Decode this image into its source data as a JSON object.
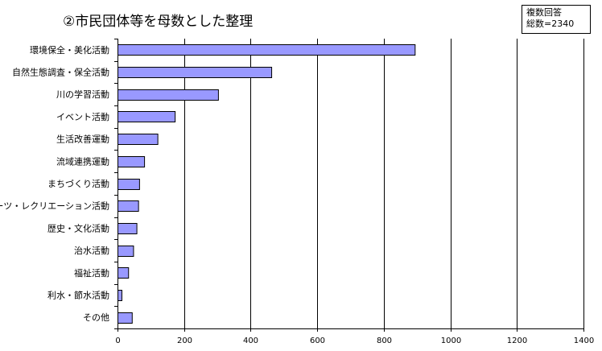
{
  "chart_data": {
    "type": "bar",
    "orientation": "horizontal",
    "title": "②市民団体等を母数とした整理",
    "note": [
      "複数回答",
      "総数=2340"
    ],
    "categories": [
      "環境保全・美化活動",
      "自然生態調査・保全活動",
      "川の学習活動",
      "イベント活動",
      "生活改善運動",
      "流域連携運動",
      "まちづくり活動",
      "スポーツ・レクリエーション活動",
      "歴史・文化活動",
      "治水活動",
      "福祉活動",
      "利水・節水活動",
      "その他"
    ],
    "values": [
      893,
      462,
      302,
      172,
      120,
      80,
      65,
      62,
      57,
      47,
      32,
      12,
      43
    ],
    "xlim": [
      0,
      1400
    ],
    "xticks": [
      "0",
      "200",
      "400",
      "600",
      "800",
      "1000",
      "1200",
      "1400"
    ],
    "grid": true,
    "bar_color": "#9999ff",
    "legend": "none"
  }
}
